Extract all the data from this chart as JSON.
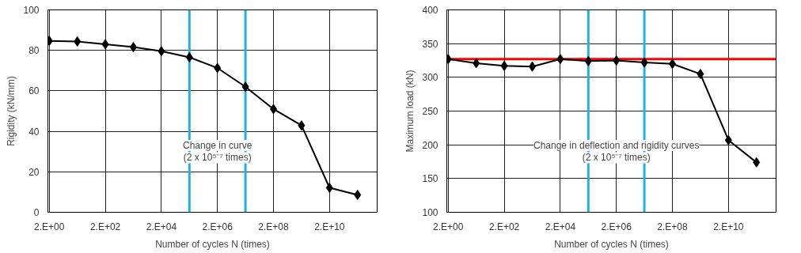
{
  "chart_data": [
    {
      "type": "line",
      "xlabel": "Number of cycles N (times)",
      "ylabel": "Rigidity (kN/mm)",
      "categories": [
        "2.E+00",
        null,
        "2.E+02",
        null,
        "2.E+04",
        null,
        "2.E+06",
        null,
        "2.E+08",
        null,
        "2.E+10",
        null
      ],
      "series": [
        {
          "color": "#000000",
          "values": [
            84.7,
            84.4,
            83,
            81.6,
            79.6,
            76.6,
            71.3,
            62,
            51,
            42.9,
            12.1,
            8.6
          ]
        }
      ],
      "ylim": [
        0,
        100
      ],
      "yticks": [
        0,
        20,
        40,
        60,
        80,
        100
      ],
      "grid": true,
      "marker": "diamond",
      "line_style": "solid",
      "annotations": [
        "Change in curve",
        "(2 x 10⁵⁻⁷ times)"
      ]
    },
    {
      "type": "line",
      "xlabel": "Number of cycles N (times)",
      "ylabel": "Maximum load (kN)",
      "categories": [
        "2.E+00",
        null,
        "2.E+02",
        null,
        "2.E+04",
        null,
        "2.E+06",
        null,
        "2.E+08",
        null,
        "2.E+10",
        null
      ],
      "series": [
        {
          "color": "#000000",
          "values": [
            327,
            321,
            317,
            316,
            327,
            324,
            325,
            322,
            320,
            305,
            207,
            174
          ]
        }
      ],
      "ylim": [
        100,
        400
      ],
      "yticks": [
        100,
        150,
        200,
        250,
        300,
        350,
        400
      ],
      "grid": true,
      "marker": "diamond",
      "line_style": "solid",
      "ref_lines": [
        {
          "axis": "y",
          "value": 327,
          "color": "#ff0000"
        }
      ],
      "annotations": [
        "Change in deflection and rigidity curves",
        "(2 x 10⁵⁻⁷ times)"
      ]
    }
  ]
}
